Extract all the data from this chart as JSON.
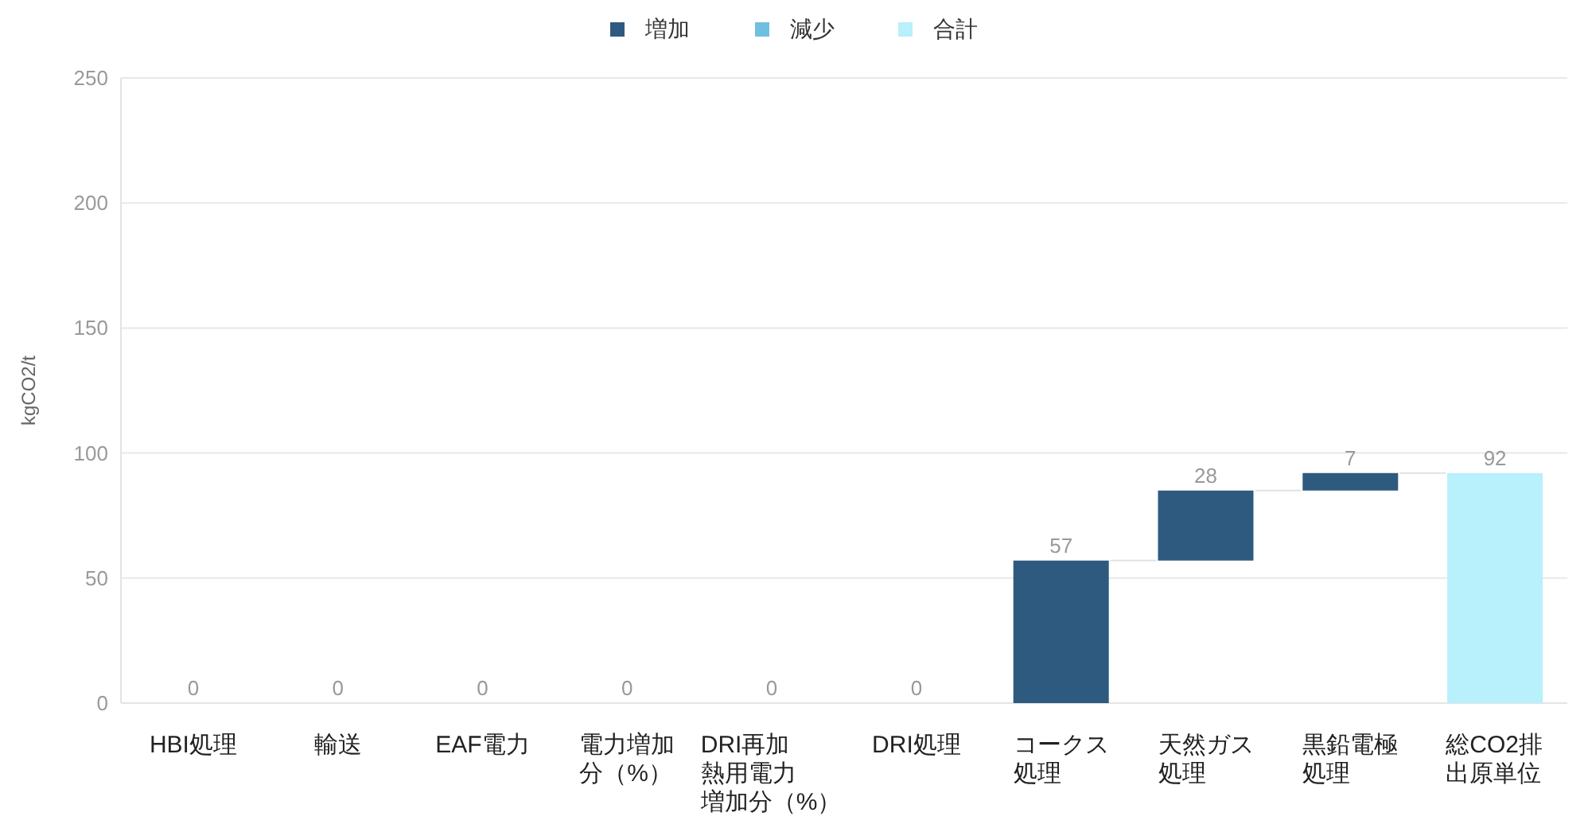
{
  "chart_data": {
    "type": "bar",
    "ylabel": "kgCO2/t",
    "categories": [
      "HBI処理",
      "輸送",
      "EAF電力",
      "電力増加分（%）",
      "DRI再加熱用電力増加分（%）",
      "DRI処理",
      "コークス処理",
      "天然ガス処理",
      "黒鉛電極処理",
      "総CO2排出原単位"
    ],
    "series": [
      {
        "name": "増加",
        "color": "#2f5a80",
        "values": [
          0,
          0,
          0,
          0,
          0,
          0,
          57,
          28,
          7,
          null
        ],
        "base": [
          null,
          null,
          null,
          null,
          null,
          null,
          0,
          57,
          85,
          null
        ]
      },
      {
        "name": "減少",
        "color": "#6fbfe0",
        "values": [
          null,
          null,
          null,
          null,
          null,
          null,
          null,
          null,
          null,
          null
        ]
      },
      {
        "name": "合計",
        "color": "#b8f0fc",
        "values": [
          null,
          null,
          null,
          null,
          null,
          null,
          null,
          null,
          null,
          92
        ],
        "base": [
          null,
          null,
          null,
          null,
          null,
          null,
          null,
          null,
          null,
          0
        ]
      }
    ],
    "ylim": [
      0,
      250
    ],
    "yticks": [
      0,
      50,
      100,
      150,
      200,
      250
    ],
    "grid": "y",
    "legend": "top",
    "data_labels": true
  }
}
